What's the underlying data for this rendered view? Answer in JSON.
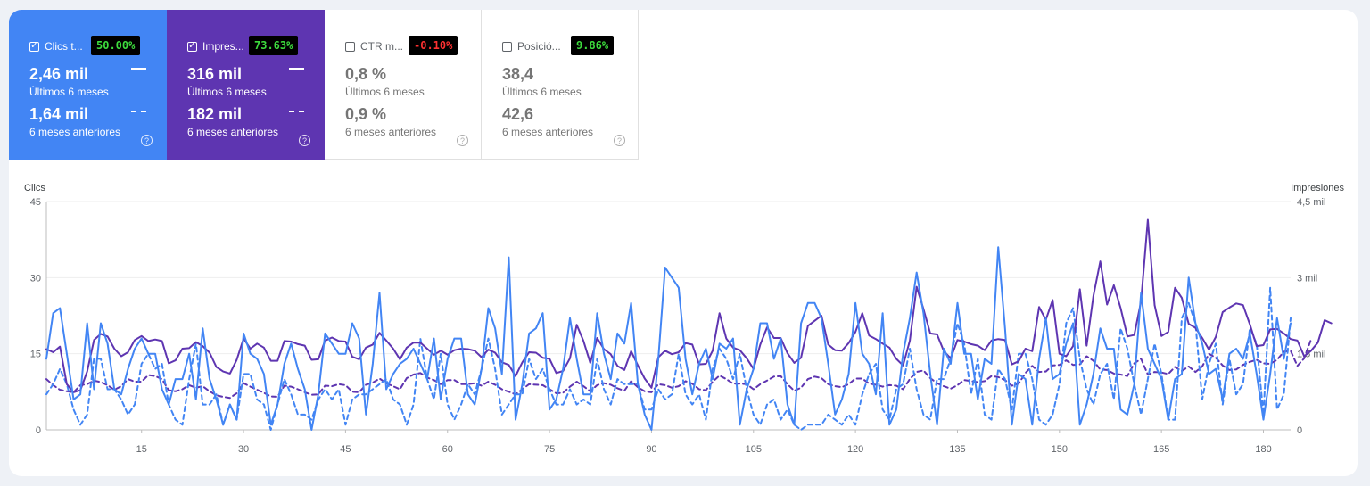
{
  "metrics": [
    {
      "label": "Clics t...",
      "badge": "50.00%",
      "value_current": "2,46 mil",
      "period_current": "Últimos 6 meses",
      "value_previous": "1,64 mil",
      "period_previous": "6 meses anteriores",
      "checked": true,
      "color": "#4285f4"
    },
    {
      "label": "Impres...",
      "badge": "73.63%",
      "value_current": "316 mil",
      "period_current": "Últimos 6 meses",
      "value_previous": "182 mil",
      "period_previous": "6 meses anteriores",
      "checked": true,
      "color": "#5e35b1"
    },
    {
      "label": "CTR m...",
      "badge": "-0.10%",
      "value_current": "0,8 %",
      "period_current": "Últimos 6 meses",
      "value_previous": "0,9 %",
      "period_previous": "6 meses anteriores",
      "checked": false,
      "color": "#ffffff"
    },
    {
      "label": "Posició...",
      "badge": "9.86%",
      "value_current": "38,4",
      "period_current": "Últimos 6 meses",
      "value_previous": "42,6",
      "period_previous": "6 meses anteriores",
      "checked": false,
      "color": "#ffffff"
    }
  ],
  "icons": {
    "checkbox": "checkbox-icon",
    "help": "help-circle-icon"
  },
  "chart_data": {
    "type": "line",
    "title": "",
    "ylabel_left": "Clics",
    "ylabel_right": "Impresiones",
    "ylim_left": [
      0,
      45
    ],
    "ylim_right": [
      0,
      4500
    ],
    "y_ticks_left": [
      "0",
      "15",
      "30",
      "45"
    ],
    "y_ticks_right": [
      "0",
      "1,5 mil",
      "3 mil",
      "4,5 mil"
    ],
    "x_ticks": [
      "15",
      "30",
      "45",
      "60",
      "75",
      "90",
      "105",
      "120",
      "135",
      "150",
      "165",
      "180"
    ],
    "x_range": [
      1,
      184
    ],
    "grid": true,
    "series": [
      {
        "name": "Clics",
        "period": "current",
        "color": "#4285f4",
        "dashed": false,
        "axis": "left",
        "values": [
          14,
          23,
          24,
          15,
          6,
          7,
          21,
          8,
          21,
          17,
          8,
          7,
          12,
          16,
          18,
          15,
          15,
          8,
          5,
          10,
          10,
          15,
          6,
          20,
          10,
          6,
          1,
          5,
          2,
          19,
          15,
          14,
          11,
          1,
          5,
          13,
          17,
          12,
          8,
          0,
          7,
          19,
          17,
          15,
          15,
          21,
          18,
          3,
          13,
          27,
          8,
          11,
          13,
          14,
          16,
          13,
          10,
          18,
          6,
          14,
          18,
          18,
          7,
          5,
          12,
          24,
          20,
          11,
          34,
          2,
          9,
          19,
          20,
          23,
          4,
          6,
          12,
          22,
          14,
          7,
          7,
          23,
          15,
          10,
          19,
          17,
          25,
          9,
          3,
          0,
          14,
          32,
          30,
          28,
          14,
          7,
          13,
          16,
          10,
          17,
          16,
          18,
          1,
          8,
          12,
          21,
          21,
          14,
          18,
          5,
          1,
          21,
          25,
          25,
          22,
          13,
          3,
          6,
          11,
          25,
          15,
          13,
          7,
          23,
          1,
          4,
          15,
          22,
          31,
          23,
          11,
          1,
          16,
          13,
          25,
          15,
          15,
          6,
          14,
          13,
          36,
          20,
          1,
          11,
          10,
          1,
          14,
          22,
          10,
          11,
          17,
          21,
          1,
          5,
          11,
          20,
          16,
          16,
          4,
          3,
          9,
          27,
          16,
          13,
          10,
          2,
          10,
          11,
          30,
          21,
          17,
          11,
          12,
          6,
          15,
          16,
          14,
          19,
          11,
          2,
          11,
          22,
          14,
          21
        ]
      },
      {
        "name": "Clics",
        "period": "previous",
        "color": "#4285f4",
        "dashed": true,
        "axis": "left",
        "values": [
          7,
          9,
          12,
          9,
          4,
          1,
          3,
          14,
          14,
          8,
          8,
          6,
          3,
          5,
          13,
          15,
          12,
          13,
          5,
          2,
          1,
          10,
          17,
          5,
          5,
          7,
          1,
          5,
          2,
          11,
          11,
          6,
          5,
          0,
          5,
          10,
          7,
          3,
          3,
          2,
          6,
          8,
          6,
          8,
          1,
          6,
          7,
          7,
          8,
          9,
          10,
          6,
          5,
          1,
          5,
          18,
          10,
          6,
          15,
          5,
          2,
          5,
          9,
          7,
          12,
          18,
          12,
          3,
          5,
          7,
          7,
          14,
          10,
          12,
          8,
          5,
          5,
          8,
          5,
          6,
          5,
          14,
          8,
          5,
          10,
          9,
          9,
          9,
          4,
          4,
          8,
          6,
          7,
          15,
          7,
          5,
          7,
          2,
          12,
          16,
          14,
          10,
          15,
          8,
          3,
          1,
          5,
          6,
          2,
          4,
          1,
          0,
          1,
          1,
          1,
          3,
          2,
          1,
          3,
          1,
          7,
          11,
          13,
          4,
          2,
          8,
          9,
          16,
          8,
          3,
          2,
          10,
          10,
          14,
          21,
          17,
          7,
          14,
          3,
          2,
          12,
          10,
          4,
          15,
          15,
          10,
          2,
          1,
          3,
          9,
          21,
          24,
          14,
          8,
          5,
          11,
          13,
          6,
          20,
          16,
          9,
          3,
          10,
          17,
          11,
          2,
          2,
          22,
          25,
          21,
          6,
          13,
          17,
          5,
          14,
          7,
          9,
          20,
          17,
          3,
          28,
          4,
          7,
          22
        ]
      },
      {
        "name": "Impresiones",
        "period": "current",
        "color": "#5e35b1",
        "dashed": false,
        "axis": "right",
        "values": [
          1590,
          1530,
          1640,
          900,
          740,
          780,
          1150,
          1770,
          1890,
          1840,
          1600,
          1450,
          1530,
          1770,
          1850,
          1750,
          1780,
          1750,
          1310,
          1370,
          1600,
          1610,
          1730,
          1650,
          1520,
          1240,
          1150,
          1110,
          1380,
          1800,
          1600,
          1700,
          1620,
          1360,
          1360,
          1750,
          1740,
          1690,
          1660,
          1380,
          1390,
          1760,
          1820,
          1750,
          1740,
          1440,
          1390,
          1620,
          1680,
          1910,
          1760,
          1600,
          1390,
          1620,
          1720,
          1720,
          1600,
          1480,
          1560,
          1480,
          1570,
          1600,
          1590,
          1560,
          1430,
          1580,
          1520,
          1330,
          1280,
          1060,
          1330,
          1530,
          1520,
          1420,
          1400,
          1120,
          1160,
          1410,
          2070,
          1750,
          1320,
          1810,
          1590,
          1490,
          1260,
          1180,
          1550,
          1270,
          1010,
          830,
          1430,
          1560,
          1490,
          1530,
          1710,
          1680,
          1290,
          1300,
          1560,
          2300,
          1800,
          1620,
          1570,
          1410,
          1200,
          1680,
          2020,
          1810,
          1810,
          1510,
          1320,
          1420,
          2050,
          2150,
          2250,
          1680,
          1570,
          1560,
          1710,
          1930,
          2300,
          1860,
          1790,
          1700,
          1620,
          1400,
          1270,
          1760,
          2820,
          2380,
          1900,
          1880,
          1550,
          1410,
          1770,
          1740,
          1690,
          1660,
          1570,
          1760,
          1790,
          1770,
          1290,
          1350,
          1600,
          1550,
          2420,
          2170,
          2560,
          1500,
          1450,
          1650,
          2770,
          1660,
          2640,
          3320,
          2470,
          2850,
          2400,
          1840,
          1870,
          2530,
          4140,
          2460,
          1850,
          1930,
          2800,
          2600,
          2090,
          2010,
          1810,
          1580,
          1830,
          2320,
          2410,
          2490,
          2460,
          2080,
          1650,
          1670,
          1980,
          1990,
          1900,
          1790,
          1760,
          1450,
          1560,
          1720,
          2160,
          2100
        ]
      },
      {
        "name": "Impresiones",
        "period": "previous",
        "color": "#5e35b1",
        "dashed": true,
        "axis": "right",
        "values": [
          1000,
          880,
          790,
          760,
          740,
          880,
          900,
          970,
          940,
          880,
          790,
          860,
          1000,
          950,
          950,
          1080,
          1060,
          1000,
          780,
          760,
          800,
          880,
          830,
          860,
          760,
          680,
          650,
          630,
          720,
          920,
          850,
          790,
          730,
          660,
          650,
          870,
          850,
          800,
          740,
          690,
          700,
          870,
          860,
          900,
          880,
          750,
          740,
          890,
          930,
          1010,
          920,
          860,
          800,
          1020,
          1090,
          1120,
          1030,
          980,
          900,
          980,
          980,
          900,
          900,
          920,
          870,
          950,
          890,
          800,
          750,
          700,
          800,
          900,
          890,
          880,
          800,
          720,
          730,
          850,
          950,
          860,
          760,
          880,
          920,
          890,
          820,
          770,
          960,
          840,
          760,
          740,
          900,
          880,
          830,
          860,
          960,
          910,
          800,
          780,
          950,
          1070,
          1000,
          910,
          910,
          900,
          800,
          900,
          970,
          1050,
          1060,
          900,
          770,
          830,
          1000,
          1050,
          1020,
          900,
          860,
          840,
          900,
          1010,
          1010,
          910,
          890,
          850,
          880,
          870,
          800,
          1000,
          1140,
          1170,
          1020,
          920,
          860,
          810,
          880,
          980,
          960,
          940,
          960,
          1060,
          1040,
          980,
          870,
          910,
          1120,
          1260,
          1140,
          1150,
          1270,
          1280,
          1370,
          1280,
          1290,
          1450,
          1360,
          1190,
          1180,
          1110,
          1090,
          1060,
          1310,
          1400,
          1090,
          1140,
          1130,
          1100,
          1240,
          1160,
          1250,
          1140,
          1250,
          1500,
          1420,
          1270,
          1180,
          1190,
          1280,
          1340,
          1380,
          1310,
          1300,
          1380,
          1540,
          1560,
          1260,
          1410,
          1780
        ]
      }
    ]
  }
}
